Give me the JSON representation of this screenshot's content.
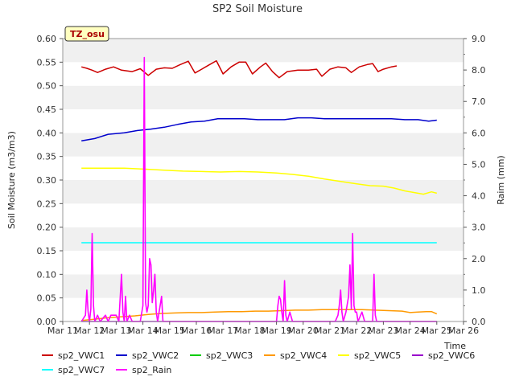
{
  "chart_data": {
    "type": "line",
    "title": "SP2 Soil Moisture",
    "xlabel": "Time",
    "ylabel": "Soil Moisture (m3/m3)",
    "y2label": "Raim (mm)",
    "site_label": "TZ_osu",
    "ylim": [
      0.0,
      0.6
    ],
    "y2lim": [
      0.0,
      9.0
    ],
    "xlim": [
      11,
      26
    ],
    "x_ticks": [
      {
        "v": 11,
        "label": "Mar 11"
      },
      {
        "v": 12,
        "label": "Mar 12"
      },
      {
        "v": 13,
        "label": "Mar 13"
      },
      {
        "v": 14,
        "label": "Mar 14"
      },
      {
        "v": 15,
        "label": "Mar 15"
      },
      {
        "v": 16,
        "label": "Mar 16"
      },
      {
        "v": 17,
        "label": "Mar 17"
      },
      {
        "v": 18,
        "label": "Mar 18"
      },
      {
        "v": 19,
        "label": "Mar 19"
      },
      {
        "v": 20,
        "label": "Mar 20"
      },
      {
        "v": 21,
        "label": "Mar 21"
      },
      {
        "v": 22,
        "label": "Mar 22"
      },
      {
        "v": 23,
        "label": "Mar 23"
      },
      {
        "v": 24,
        "label": "Mar 24"
      },
      {
        "v": 25,
        "label": "Mar 25"
      },
      {
        "v": 26,
        "label": "Mar 26"
      }
    ],
    "y_ticks": [
      "0.00",
      "0.05",
      "0.10",
      "0.15",
      "0.20",
      "0.25",
      "0.30",
      "0.35",
      "0.40",
      "0.45",
      "0.50",
      "0.55",
      "0.60"
    ],
    "y2_ticks": [
      "0.0",
      "1.0",
      "2.0",
      "3.0",
      "4.0",
      "5.0",
      "6.0",
      "7.0",
      "8.0",
      "9.0"
    ],
    "grid": "horizontal bands",
    "legend_position": "bottom",
    "series": [
      {
        "name": "sp2_VWC1",
        "axis": "left",
        "color": "#cc0000",
        "points": [
          [
            11.7,
            0.54
          ],
          [
            11.9,
            0.537
          ],
          [
            12.1,
            0.533
          ],
          [
            12.3,
            0.528
          ],
          [
            12.6,
            0.535
          ],
          [
            12.9,
            0.54
          ],
          [
            13.2,
            0.533
          ],
          [
            13.6,
            0.53
          ],
          [
            13.9,
            0.536
          ],
          [
            14.2,
            0.522
          ],
          [
            14.5,
            0.535
          ],
          [
            14.8,
            0.538
          ],
          [
            15.1,
            0.537
          ],
          [
            15.4,
            0.545
          ],
          [
            15.7,
            0.552
          ],
          [
            15.95,
            0.527
          ],
          [
            16.2,
            0.535
          ],
          [
            16.5,
            0.545
          ],
          [
            16.75,
            0.553
          ],
          [
            17.0,
            0.525
          ],
          [
            17.3,
            0.54
          ],
          [
            17.6,
            0.55
          ],
          [
            17.85,
            0.55
          ],
          [
            18.1,
            0.525
          ],
          [
            18.4,
            0.54
          ],
          [
            18.6,
            0.548
          ],
          [
            18.85,
            0.53
          ],
          [
            19.1,
            0.517
          ],
          [
            19.4,
            0.53
          ],
          [
            19.8,
            0.533
          ],
          [
            20.2,
            0.533
          ],
          [
            20.5,
            0.535
          ],
          [
            20.7,
            0.52
          ],
          [
            21.0,
            0.535
          ],
          [
            21.3,
            0.54
          ],
          [
            21.6,
            0.538
          ],
          [
            21.8,
            0.528
          ],
          [
            22.1,
            0.54
          ],
          [
            22.4,
            0.545
          ],
          [
            22.6,
            0.547
          ],
          [
            22.8,
            0.53
          ],
          [
            23.0,
            0.535
          ],
          [
            23.3,
            0.54
          ],
          [
            23.5,
            0.542
          ]
        ]
      },
      {
        "name": "sp2_VWC2",
        "axis": "left",
        "color": "#0000cc",
        "points": [
          [
            11.7,
            0.383
          ],
          [
            12.2,
            0.388
          ],
          [
            12.7,
            0.397
          ],
          [
            13.3,
            0.4
          ],
          [
            13.8,
            0.405
          ],
          [
            14.3,
            0.408
          ],
          [
            14.8,
            0.412
          ],
          [
            15.3,
            0.418
          ],
          [
            15.8,
            0.423
          ],
          [
            16.3,
            0.425
          ],
          [
            16.8,
            0.43
          ],
          [
            17.3,
            0.43
          ],
          [
            17.8,
            0.43
          ],
          [
            18.3,
            0.428
          ],
          [
            18.8,
            0.428
          ],
          [
            19.3,
            0.428
          ],
          [
            19.8,
            0.432
          ],
          [
            20.3,
            0.432
          ],
          [
            20.8,
            0.43
          ],
          [
            21.3,
            0.43
          ],
          [
            21.8,
            0.43
          ],
          [
            22.3,
            0.43
          ],
          [
            22.8,
            0.43
          ],
          [
            23.3,
            0.43
          ],
          [
            23.8,
            0.428
          ],
          [
            24.3,
            0.428
          ],
          [
            24.7,
            0.425
          ],
          [
            25.0,
            0.427
          ]
        ]
      },
      {
        "name": "sp2_VWC3",
        "axis": "left",
        "color": "#00cc00",
        "points": []
      },
      {
        "name": "sp2_VWC4",
        "axis": "left",
        "color": "#ff9900",
        "points": [
          [
            11.7,
            0.002
          ],
          [
            12.2,
            0.005
          ],
          [
            12.7,
            0.008
          ],
          [
            13.2,
            0.01
          ],
          [
            13.7,
            0.012
          ],
          [
            14.2,
            0.015
          ],
          [
            14.7,
            0.017
          ],
          [
            15.2,
            0.018
          ],
          [
            15.7,
            0.019
          ],
          [
            16.2,
            0.019
          ],
          [
            16.7,
            0.02
          ],
          [
            17.2,
            0.021
          ],
          [
            17.7,
            0.021
          ],
          [
            18.2,
            0.022
          ],
          [
            18.7,
            0.022
          ],
          [
            19.2,
            0.023
          ],
          [
            19.7,
            0.024
          ],
          [
            20.2,
            0.024
          ],
          [
            20.7,
            0.025
          ],
          [
            21.2,
            0.025
          ],
          [
            21.7,
            0.025
          ],
          [
            22.2,
            0.025
          ],
          [
            22.7,
            0.024
          ],
          [
            23.2,
            0.023
          ],
          [
            23.7,
            0.022
          ],
          [
            24.0,
            0.019
          ],
          [
            24.3,
            0.02
          ],
          [
            24.6,
            0.021
          ],
          [
            24.8,
            0.021
          ],
          [
            25.0,
            0.016
          ]
        ]
      },
      {
        "name": "sp2_VWC5",
        "axis": "left",
        "color": "#ffff00",
        "points": [
          [
            11.7,
            0.325
          ],
          [
            12.5,
            0.325
          ],
          [
            13.3,
            0.325
          ],
          [
            14.1,
            0.323
          ],
          [
            14.8,
            0.321
          ],
          [
            15.5,
            0.319
          ],
          [
            16.2,
            0.318
          ],
          [
            16.9,
            0.317
          ],
          [
            17.6,
            0.318
          ],
          [
            18.3,
            0.317
          ],
          [
            19.0,
            0.315
          ],
          [
            19.6,
            0.312
          ],
          [
            20.2,
            0.308
          ],
          [
            20.8,
            0.302
          ],
          [
            21.4,
            0.297
          ],
          [
            22.0,
            0.292
          ],
          [
            22.5,
            0.288
          ],
          [
            23.0,
            0.287
          ],
          [
            23.4,
            0.283
          ],
          [
            23.8,
            0.277
          ],
          [
            24.1,
            0.274
          ],
          [
            24.5,
            0.27
          ],
          [
            24.8,
            0.275
          ],
          [
            25.0,
            0.272
          ]
        ]
      },
      {
        "name": "sp2_VWC6",
        "axis": "left",
        "color": "#9900cc",
        "points": [
          [
            11.7,
            0.0
          ],
          [
            25.0,
            0.0
          ]
        ]
      },
      {
        "name": "sp2_VWC7",
        "axis": "left",
        "color": "#00ffff",
        "points": [
          [
            11.7,
            0.167
          ],
          [
            25.0,
            0.167
          ]
        ]
      },
      {
        "name": "sp2_Rain",
        "axis": "right",
        "color": "#ff00ff",
        "points": [
          [
            11.7,
            0.0
          ],
          [
            11.85,
            0.2
          ],
          [
            11.9,
            1.0
          ],
          [
            11.95,
            0.3
          ],
          [
            12.0,
            0.0
          ],
          [
            12.05,
            0.4
          ],
          [
            12.1,
            2.8
          ],
          [
            12.15,
            0.5
          ],
          [
            12.2,
            0.0
          ],
          [
            12.3,
            0.2
          ],
          [
            12.4,
            0.0
          ],
          [
            12.6,
            0.2
          ],
          [
            12.7,
            0.0
          ],
          [
            12.8,
            0.2
          ],
          [
            12.9,
            0.2
          ],
          [
            13.0,
            0.2
          ],
          [
            13.1,
            0.0
          ],
          [
            13.2,
            1.5
          ],
          [
            13.25,
            0.3
          ],
          [
            13.3,
            0.0
          ],
          [
            13.35,
            0.8
          ],
          [
            13.4,
            0.0
          ],
          [
            13.5,
            0.2
          ],
          [
            13.6,
            0.0
          ],
          [
            13.9,
            0.0
          ],
          [
            14.0,
            0.5
          ],
          [
            14.05,
            8.4
          ],
          [
            14.1,
            0.6
          ],
          [
            14.15,
            0.3
          ],
          [
            14.2,
            0.5
          ],
          [
            14.25,
            2.0
          ],
          [
            14.3,
            1.8
          ],
          [
            14.35,
            0.6
          ],
          [
            14.4,
            1.0
          ],
          [
            14.45,
            1.5
          ],
          [
            14.5,
            0.3
          ],
          [
            14.55,
            0.0
          ],
          [
            14.7,
            0.8
          ],
          [
            14.75,
            0.0
          ],
          [
            15.0,
            0.0
          ],
          [
            19.0,
            0.0
          ],
          [
            19.05,
            0.5
          ],
          [
            19.1,
            0.8
          ],
          [
            19.15,
            0.7
          ],
          [
            19.2,
            0.3
          ],
          [
            19.25,
            0.0
          ],
          [
            19.3,
            1.3
          ],
          [
            19.35,
            0.2
          ],
          [
            19.4,
            0.0
          ],
          [
            19.5,
            0.3
          ],
          [
            19.6,
            0.0
          ],
          [
            21.2,
            0.0
          ],
          [
            21.3,
            0.2
          ],
          [
            21.35,
            0.5
          ],
          [
            21.4,
            1.0
          ],
          [
            21.45,
            0.3
          ],
          [
            21.5,
            0.0
          ],
          [
            21.6,
            0.3
          ],
          [
            21.7,
            0.8
          ],
          [
            21.75,
            1.8
          ],
          [
            21.8,
            0.4
          ],
          [
            21.85,
            2.8
          ],
          [
            21.9,
            0.5
          ],
          [
            21.95,
            0.3
          ],
          [
            22.0,
            0.3
          ],
          [
            22.05,
            0.0
          ],
          [
            22.2,
            0.3
          ],
          [
            22.3,
            0.0
          ],
          [
            22.6,
            0.0
          ],
          [
            22.65,
            1.5
          ],
          [
            22.7,
            0.2
          ],
          [
            22.75,
            0.0
          ],
          [
            25.0,
            0.0
          ]
        ]
      }
    ]
  }
}
